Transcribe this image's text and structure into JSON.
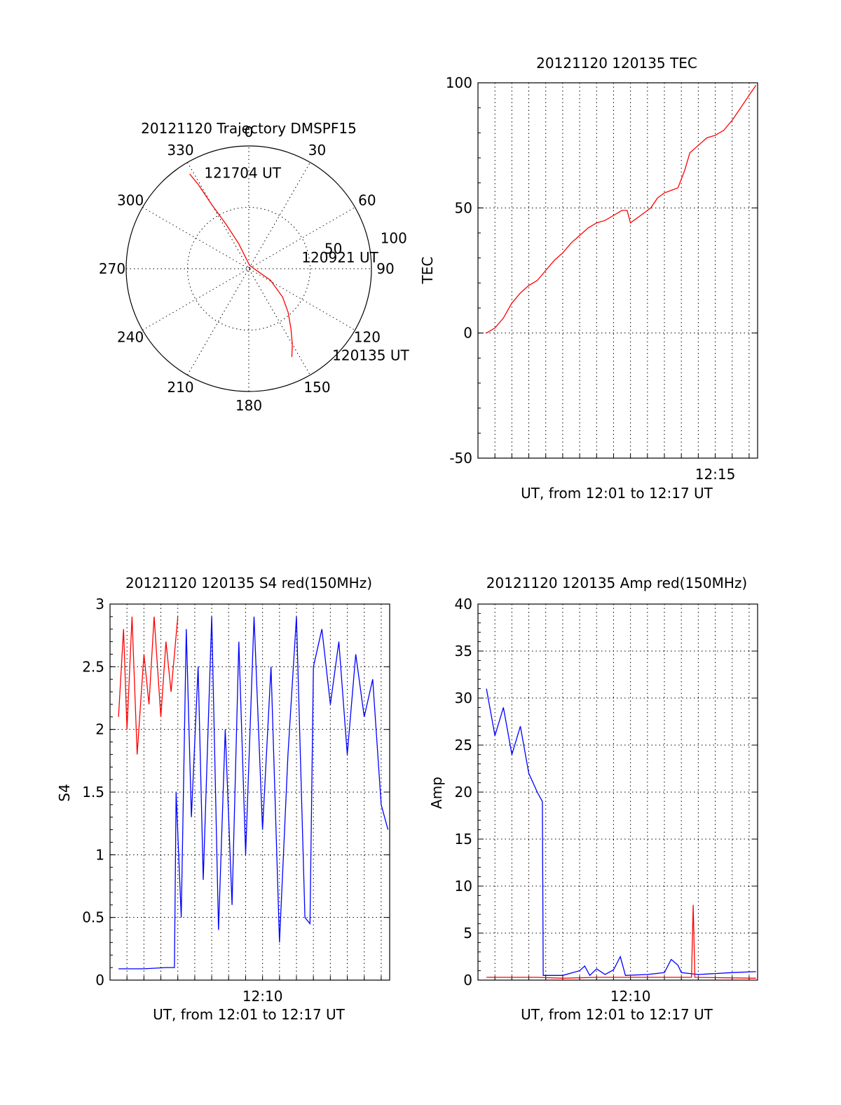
{
  "chart_data": [
    {
      "type": "polar",
      "title": "20121120 Trajectory DMSPF15",
      "angle_labels": [
        "0",
        "30",
        "60",
        "90",
        "120",
        "150",
        "180",
        "210",
        "240",
        "270",
        "300",
        "330"
      ],
      "radial_labels": [
        "50",
        "100"
      ],
      "rmax": 100,
      "series": [
        {
          "color": "#ff0000",
          "points": [
            {
              "az": 154,
              "r": 80
            },
            {
              "az": 150,
              "r": 71
            },
            {
              "az": 145,
              "r": 60
            },
            {
              "az": 138,
              "r": 48
            },
            {
              "az": 130,
              "r": 36
            },
            {
              "az": 118,
              "r": 20
            },
            {
              "az": 95,
              "r": 5
            },
            {
              "az": 10,
              "r": 3
            },
            {
              "az": 338,
              "r": 22
            },
            {
              "az": 333,
              "r": 40
            },
            {
              "az": 330,
              "r": 60
            },
            {
              "az": 329,
              "r": 80
            },
            {
              "az": 328,
              "r": 91
            }
          ]
        }
      ],
      "annotations": [
        {
          "text": "121704 UT",
          "az": 335,
          "r": 86
        },
        {
          "text": "120921 UT",
          "az": 78,
          "r": 44
        },
        {
          "text": "120135 UT",
          "az": 136,
          "r": 98
        }
      ]
    },
    {
      "type": "line",
      "title": "20121120 120135 TEC",
      "xlabel": "UT, from 12:01 to 12:17 UT",
      "ylabel": "TEC",
      "xlim": [
        0,
        16.5
      ],
      "ylim": [
        -50,
        100
      ],
      "yticks": [
        "-50",
        "0",
        "50",
        "100"
      ],
      "xtick_labels": [
        {
          "label": "12:15",
          "value": 14
        }
      ],
      "grid": true,
      "series": [
        {
          "color": "#ff0000",
          "points": [
            [
              0.5,
              0
            ],
            [
              1.0,
              2
            ],
            [
              1.5,
              6
            ],
            [
              2.0,
              12
            ],
            [
              2.5,
              16
            ],
            [
              3.0,
              19
            ],
            [
              3.5,
              21
            ],
            [
              4.0,
              25
            ],
            [
              4.5,
              29
            ],
            [
              5.0,
              32
            ],
            [
              5.5,
              36
            ],
            [
              6.0,
              39
            ],
            [
              6.5,
              42
            ],
            [
              7.0,
              44
            ],
            [
              7.5,
              45
            ],
            [
              8.0,
              47
            ],
            [
              8.5,
              49
            ],
            [
              8.8,
              49
            ],
            [
              9.0,
              44
            ],
            [
              9.4,
              46
            ],
            [
              9.8,
              48
            ],
            [
              10.2,
              50
            ],
            [
              10.6,
              54
            ],
            [
              11.0,
              56
            ],
            [
              11.4,
              57
            ],
            [
              11.8,
              58
            ],
            [
              12.2,
              65
            ],
            [
              12.5,
              72
            ],
            [
              13.0,
              75
            ],
            [
              13.5,
              78
            ],
            [
              14.0,
              79
            ],
            [
              14.5,
              81
            ],
            [
              15.0,
              85
            ],
            [
              15.5,
              90
            ],
            [
              16.0,
              95
            ],
            [
              16.4,
              99
            ]
          ]
        }
      ]
    },
    {
      "type": "line",
      "title": "20121120 120135 S4 red(150MHz)",
      "xlabel": "UT, from 12:01 to 12:17 UT",
      "ylabel": "S4",
      "xlim": [
        0,
        16.5
      ],
      "ylim": [
        0,
        3
      ],
      "yticks": [
        "0",
        "0.5",
        "1",
        "1.5",
        "2",
        "2.5",
        "3"
      ],
      "xtick_labels": [
        {
          "label": "12:10",
          "value": 9
        }
      ],
      "grid": true,
      "series": [
        {
          "color": "#0000ff",
          "name": "",
          "points": [
            [
              0.5,
              0.09
            ],
            [
              2.0,
              0.09
            ],
            [
              3.3,
              0.1
            ],
            [
              3.8,
              0.1
            ],
            [
              3.9,
              1.5
            ],
            [
              4.2,
              0.5
            ],
            [
              4.5,
              2.8
            ],
            [
              4.8,
              1.3
            ],
            [
              5.2,
              2.5
            ],
            [
              5.5,
              0.8
            ],
            [
              6.0,
              2.9
            ],
            [
              6.4,
              0.4
            ],
            [
              6.8,
              2.0
            ],
            [
              7.2,
              0.6
            ],
            [
              7.6,
              2.7
            ],
            [
              8.0,
              1.0
            ],
            [
              8.5,
              2.9
            ],
            [
              9.0,
              1.2
            ],
            [
              9.5,
              2.5
            ],
            [
              10.0,
              0.3
            ],
            [
              10.5,
              1.8
            ],
            [
              11.0,
              2.9
            ],
            [
              11.5,
              0.5
            ],
            [
              11.8,
              0.45
            ],
            [
              12.0,
              2.5
            ],
            [
              12.5,
              2.8
            ],
            [
              13.0,
              2.2
            ],
            [
              13.5,
              2.7
            ],
            [
              14.0,
              1.8
            ],
            [
              14.5,
              2.6
            ],
            [
              15.0,
              2.1
            ],
            [
              15.5,
              2.4
            ],
            [
              16.0,
              1.4
            ],
            [
              16.4,
              1.2
            ]
          ]
        },
        {
          "color": "#ff0000",
          "name": "",
          "points": [
            [
              0.5,
              2.1
            ],
            [
              0.8,
              2.8
            ],
            [
              1.0,
              2.0
            ],
            [
              1.3,
              2.9
            ],
            [
              1.6,
              1.8
            ],
            [
              2.0,
              2.6
            ],
            [
              2.3,
              2.2
            ],
            [
              2.6,
              2.9
            ],
            [
              3.0,
              2.1
            ],
            [
              3.3,
              2.7
            ],
            [
              3.6,
              2.3
            ],
            [
              4.0,
              2.9
            ]
          ]
        }
      ]
    },
    {
      "type": "line",
      "title": "20121120 120135 Amp red(150MHz)",
      "xlabel": "UT, from 12:01 to 12:17 UT",
      "ylabel": "Amp",
      "xlim": [
        0,
        16.5
      ],
      "ylim": [
        0,
        40
      ],
      "yticks": [
        "0",
        "5",
        "10",
        "15",
        "20",
        "25",
        "30",
        "35",
        "40"
      ],
      "xtick_labels": [
        {
          "label": "12:10",
          "value": 9
        }
      ],
      "grid": true,
      "series": [
        {
          "color": "#0000ff",
          "name": "",
          "points": [
            [
              0.5,
              31
            ],
            [
              1.0,
              26
            ],
            [
              1.5,
              29
            ],
            [
              2.0,
              24
            ],
            [
              2.5,
              27
            ],
            [
              3.0,
              22
            ],
            [
              3.5,
              20
            ],
            [
              3.8,
              19
            ],
            [
              3.85,
              0.5
            ],
            [
              5.0,
              0.5
            ],
            [
              6.0,
              1.0
            ],
            [
              6.3,
              1.5
            ],
            [
              6.6,
              0.5
            ],
            [
              7.0,
              1.2
            ],
            [
              7.5,
              0.6
            ],
            [
              8.0,
              1.1
            ],
            [
              8.4,
              2.5
            ],
            [
              8.7,
              0.5
            ],
            [
              10.0,
              0.6
            ],
            [
              11.0,
              0.8
            ],
            [
              11.4,
              2.2
            ],
            [
              11.8,
              1.6
            ],
            [
              12.0,
              0.8
            ],
            [
              13.0,
              0.6
            ],
            [
              14.0,
              0.7
            ],
            [
              15.0,
              0.8
            ],
            [
              16.4,
              0.9
            ]
          ]
        },
        {
          "color": "#ff0000",
          "name": "",
          "points": [
            [
              0.5,
              0.3
            ],
            [
              2.0,
              0.3
            ],
            [
              3.5,
              0.3
            ],
            [
              5.0,
              0.2
            ],
            [
              7.0,
              0.3
            ],
            [
              9.0,
              0.3
            ],
            [
              12.0,
              0.3
            ],
            [
              12.6,
              0.3
            ],
            [
              12.7,
              8.0
            ],
            [
              12.8,
              0.3
            ],
            [
              16.4,
              0.2
            ]
          ]
        }
      ]
    }
  ]
}
